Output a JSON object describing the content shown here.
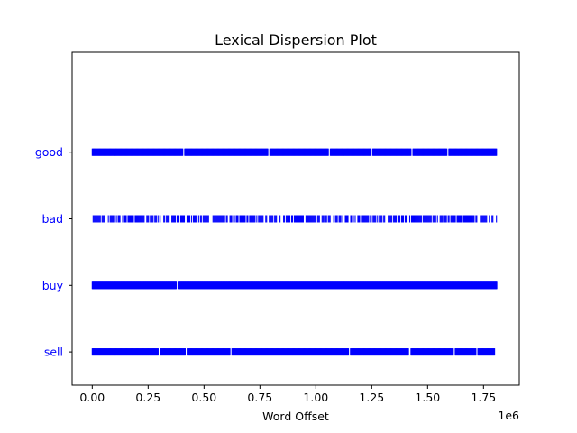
{
  "chart_data": {
    "type": "scatter",
    "title": "Lexical Dispersion Plot",
    "xlabel": "Word Offset",
    "ylabel": "",
    "x_offset_text": "1e6",
    "xlim": [
      -0.09,
      1.91
    ],
    "ylim": [
      -0.5,
      4.5
    ],
    "x_ticks": [
      0.0,
      0.25,
      0.5,
      0.75,
      1.0,
      1.25,
      1.5,
      1.75
    ],
    "x_tick_labels": [
      "0.00",
      "0.25",
      "0.50",
      "0.75",
      "1.00",
      "1.25",
      "1.50",
      "1.75"
    ],
    "marker": "|",
    "color": "#0000ff",
    "grid": false,
    "series": [
      {
        "name": "good",
        "y_index": 3,
        "x_range": [
          0.0,
          1.81
        ],
        "density": "high",
        "gaps": [
          0.41,
          0.79,
          1.06,
          1.25,
          1.43,
          1.59
        ]
      },
      {
        "name": "bad",
        "y_index": 2,
        "x_range": [
          0.0,
          1.81
        ],
        "density": "medium",
        "gaps": [
          0.04,
          0.13,
          0.3,
          0.35,
          0.47,
          0.53,
          0.7,
          0.77,
          0.83,
          0.85,
          0.95,
          1.04,
          1.07,
          1.15,
          1.18,
          1.3,
          1.38,
          1.41,
          1.52,
          1.55,
          1.6,
          1.73,
          1.77
        ]
      },
      {
        "name": "buy",
        "y_index": 1,
        "x_range": [
          0.0,
          1.81
        ],
        "density": "very-high",
        "gaps": [
          0.38
        ]
      },
      {
        "name": "sell",
        "y_index": 0,
        "x_range": [
          0.0,
          1.8
        ],
        "density": "high",
        "gaps": [
          0.3,
          0.42,
          0.62,
          1.15,
          1.42,
          1.62,
          1.72
        ]
      }
    ]
  }
}
